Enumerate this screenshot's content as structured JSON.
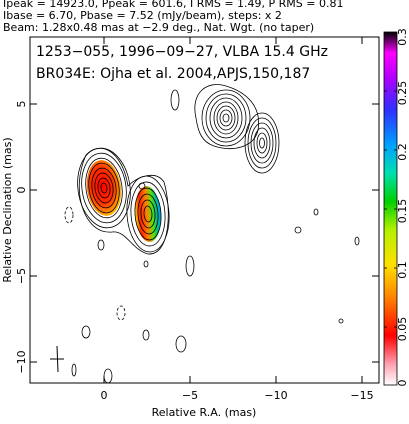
{
  "header": {
    "line1": "Ipeak = 14923.0, Ppeak = 601.6, I RMS = 1.49, P RMS = 0.81",
    "line2": "Ibase = 6.70, Pbase = 7.52 (mJy/beam), steps: x 2",
    "line3": "Beam: 1.28x0.48 mas at −2.9 deg., Nat. Wgt. (no taper)"
  },
  "annotation": {
    "line1": "1253−055, 1996−09−27, VLBA 15.4 GHz",
    "line2": "BR034E: Ojha et al. 2004,APJS,150,187"
  },
  "axes": {
    "xlabel": "Relative R.A. (mas)",
    "ylabel": "Relative Declination (mas)",
    "x_ticks": [
      "0",
      "−5",
      "−10",
      "−15"
    ],
    "y_ticks": [
      "5",
      "0",
      "−5",
      "−10"
    ]
  },
  "colorbar": {
    "ticks": [
      "0.3",
      "0.25",
      "0.2",
      "0.15",
      "0.1",
      "0.05",
      "0"
    ]
  }
}
